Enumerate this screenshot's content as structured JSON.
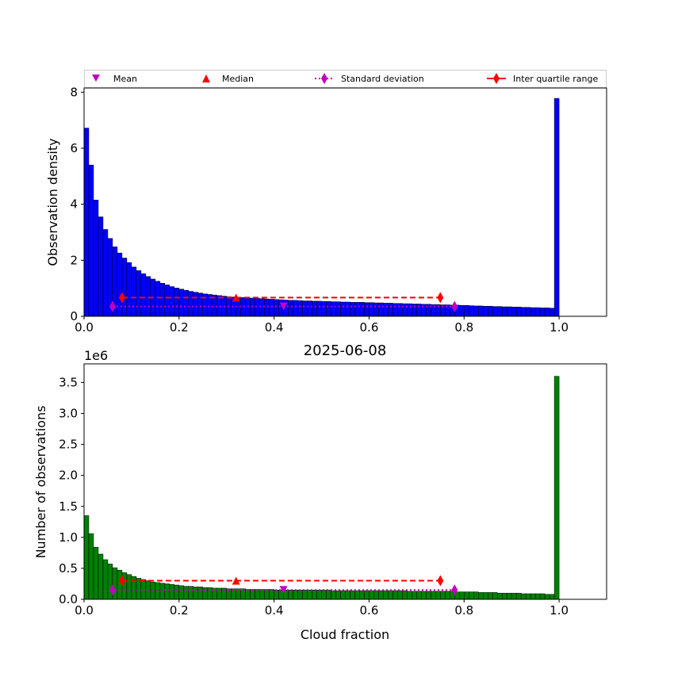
{
  "title": "2025-06-08",
  "legend": {
    "items": [
      {
        "label": "Mean",
        "marker": "triangle-down",
        "color": "#bf00bf"
      },
      {
        "label": "Median",
        "marker": "triangle-up",
        "color": "#ff0000"
      },
      {
        "label": "Standard deviation",
        "marker": "diamond",
        "line": "dotted",
        "color": "#bf00bf"
      },
      {
        "label": "Inter quartile range",
        "marker": "diamond",
        "line": "solid",
        "color": "#ff0000"
      }
    ]
  },
  "chart_data": [
    {
      "type": "bar",
      "ylabel": "Observation density",
      "xlabel": "",
      "xlim": [
        0.0,
        1.1
      ],
      "ylim": [
        0,
        8.15
      ],
      "x_ticks": [
        "0.0",
        "0.2",
        "0.4",
        "0.6",
        "0.8",
        "1.0"
      ],
      "y_ticks": [
        "0",
        "2",
        "4",
        "6",
        "8"
      ],
      "bar_color": "#0000ff",
      "bin_width": 0.01,
      "bin_start": 0.0,
      "values": [
        6.72,
        5.4,
        4.15,
        3.55,
        3.1,
        2.78,
        2.48,
        2.26,
        2.08,
        1.92,
        1.76,
        1.63,
        1.52,
        1.42,
        1.33,
        1.25,
        1.18,
        1.12,
        1.06,
        1.01,
        0.97,
        0.93,
        0.89,
        0.86,
        0.83,
        0.8,
        0.78,
        0.76,
        0.74,
        0.72,
        0.7,
        0.69,
        0.68,
        0.67,
        0.66,
        0.65,
        0.64,
        0.63,
        0.62,
        0.61,
        0.6,
        0.59,
        0.58,
        0.57,
        0.57,
        0.56,
        0.55,
        0.55,
        0.54,
        0.54,
        0.53,
        0.53,
        0.52,
        0.52,
        0.51,
        0.51,
        0.5,
        0.5,
        0.5,
        0.49,
        0.49,
        0.48,
        0.48,
        0.47,
        0.47,
        0.46,
        0.46,
        0.45,
        0.45,
        0.44,
        0.44,
        0.43,
        0.43,
        0.42,
        0.42,
        0.41,
        0.41,
        0.4,
        0.4,
        0.39,
        0.39,
        0.38,
        0.37,
        0.37,
        0.36,
        0.36,
        0.35,
        0.35,
        0.34,
        0.34,
        0.33,
        0.33,
        0.32,
        0.32,
        0.31,
        0.31,
        0.3,
        0.3,
        0.29,
        7.78
      ],
      "stats": {
        "mean": {
          "x": 0.42,
          "y": 0.35
        },
        "median": {
          "x": 0.32,
          "y": 0.67
        },
        "std_range": {
          "x": [
            0.06,
            0.78
          ],
          "y": 0.35
        },
        "iqr_range": {
          "x": [
            0.08,
            0.75
          ],
          "y": 0.67
        }
      }
    },
    {
      "type": "bar",
      "ylabel": "Number of observations",
      "xlabel": "Cloud fraction",
      "scale_label": "1e6",
      "xlim": [
        0.0,
        1.1
      ],
      "ylim": [
        0,
        3.8
      ],
      "x_ticks": [
        "0.0",
        "0.2",
        "0.4",
        "0.6",
        "0.8",
        "1.0"
      ],
      "y_ticks": [
        "0.0",
        "0.5",
        "1.0",
        "1.5",
        "2.0",
        "2.5",
        "3.0",
        "3.5"
      ],
      "bar_color": "#008000",
      "bin_width": 0.01,
      "bin_start": 0.0,
      "values": [
        1.35,
        1.06,
        0.84,
        0.73,
        0.64,
        0.57,
        0.51,
        0.47,
        0.43,
        0.4,
        0.37,
        0.34,
        0.32,
        0.3,
        0.28,
        0.27,
        0.26,
        0.25,
        0.24,
        0.23,
        0.22,
        0.21,
        0.21,
        0.2,
        0.2,
        0.19,
        0.19,
        0.18,
        0.18,
        0.18,
        0.17,
        0.17,
        0.17,
        0.17,
        0.16,
        0.16,
        0.16,
        0.16,
        0.16,
        0.16,
        0.15,
        0.15,
        0.15,
        0.15,
        0.15,
        0.15,
        0.15,
        0.15,
        0.15,
        0.15,
        0.15,
        0.15,
        0.14,
        0.14,
        0.14,
        0.14,
        0.14,
        0.14,
        0.14,
        0.14,
        0.14,
        0.14,
        0.14,
        0.14,
        0.14,
        0.14,
        0.14,
        0.14,
        0.13,
        0.13,
        0.13,
        0.13,
        0.13,
        0.13,
        0.13,
        0.13,
        0.13,
        0.13,
        0.12,
        0.12,
        0.12,
        0.12,
        0.12,
        0.11,
        0.11,
        0.11,
        0.11,
        0.1,
        0.1,
        0.1,
        0.1,
        0.1,
        0.09,
        0.09,
        0.09,
        0.09,
        0.09,
        0.08,
        0.08,
        3.6
      ],
      "stats": {
        "mean": {
          "x": 0.42,
          "y": 0.15
        },
        "median": {
          "x": 0.32,
          "y": 0.3
        },
        "std_range": {
          "x": [
            0.06,
            0.78
          ],
          "y": 0.15
        },
        "iqr_range": {
          "x": [
            0.08,
            0.75
          ],
          "y": 0.3
        }
      }
    }
  ]
}
